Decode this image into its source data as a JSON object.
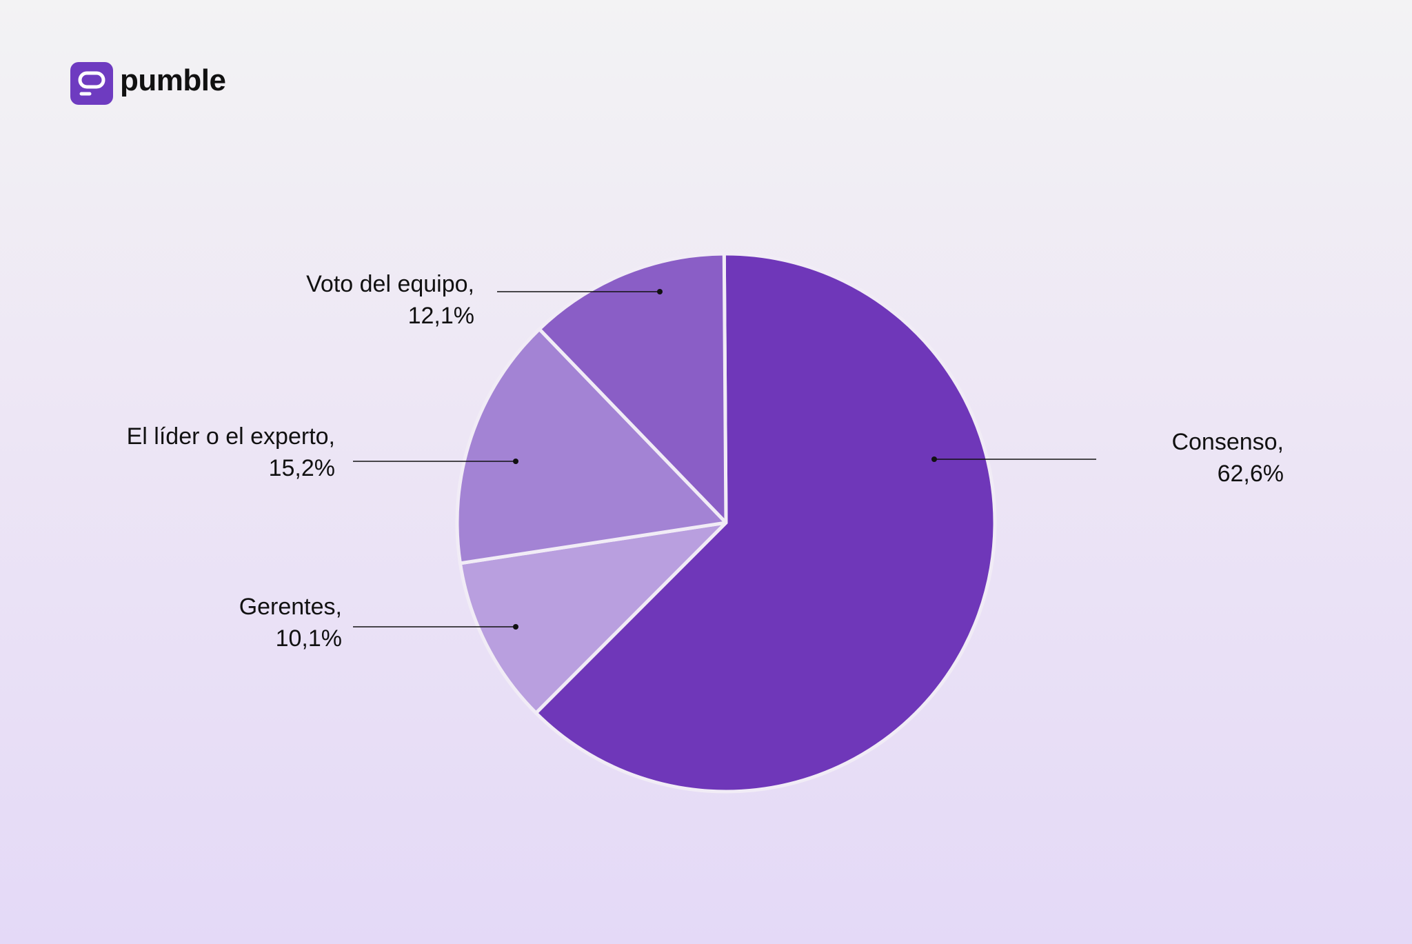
{
  "brand": {
    "name": "pumble",
    "icon": "pumble-logo-icon",
    "color": "#6e3bc0"
  },
  "chart_data": {
    "type": "pie",
    "title": "",
    "start_angle_deg": -0.4,
    "direction": "clockwise",
    "label_separator": ",",
    "slices": [
      {
        "label": "Consenso",
        "value": 62.6,
        "display": "62,6%",
        "color": "#6f37b9"
      },
      {
        "label": "Gerentes",
        "value": 10.1,
        "display": "10,1%",
        "color": "#b99fdf"
      },
      {
        "label": "El líder o el experto",
        "value": 15.2,
        "display": "15,2%",
        "color": "#a383d4"
      },
      {
        "label": "Voto del equipo",
        "value": 12.1,
        "display": "12,1%",
        "color": "#8a5ec6"
      }
    ]
  }
}
